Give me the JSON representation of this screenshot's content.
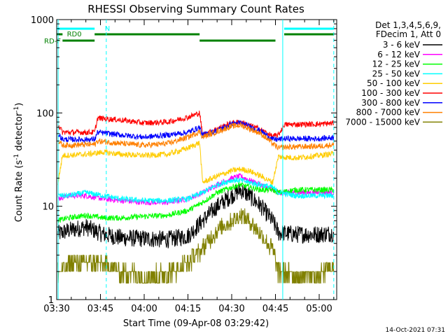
{
  "chart_data": {
    "type": "line",
    "title": "RHESSI Observing Summary Count Rates",
    "xlabel": "Start Time (09-Apr-08 03:29:42)",
    "ylabel_main": "Count Rate (s",
    "ylabel_sup1": "-1",
    "ylabel_mid": " detector",
    "ylabel_sup2": "-1",
    "ylabel_end": ")",
    "y_scale": "log",
    "ylim": [
      1,
      1000
    ],
    "y_ticks": [
      {
        "value": 1,
        "label": "1"
      },
      {
        "value": 10,
        "label": "10"
      },
      {
        "value": 100,
        "label": "100"
      },
      {
        "value": 1000,
        "label": "1000"
      }
    ],
    "xlim_minutes": [
      210,
      306
    ],
    "x_ticks": [
      {
        "minute": 210,
        "label": "03:30"
      },
      {
        "minute": 225,
        "label": "03:45"
      },
      {
        "minute": 240,
        "label": "04:00"
      },
      {
        "minute": 255,
        "label": "04:15"
      },
      {
        "minute": 270,
        "label": "04:30"
      },
      {
        "minute": 285,
        "label": "04:45"
      },
      {
        "minute": 300,
        "label": "05:00"
      }
    ],
    "legend_header": [
      "Det 1,3,4,5,6,9,",
      "FDecim 1, Att 0"
    ],
    "legend_placement": "right",
    "series": [
      {
        "name": "3 - 6 keV",
        "color": "#000000",
        "points": [
          [
            210,
            5
          ],
          [
            214,
            5.5
          ],
          [
            220,
            6
          ],
          [
            226,
            5
          ],
          [
            232,
            4.6
          ],
          [
            240,
            4.5
          ],
          [
            248,
            4.4
          ],
          [
            255,
            4.8
          ],
          [
            260,
            7
          ],
          [
            265,
            10
          ],
          [
            270,
            13
          ],
          [
            273,
            15
          ],
          [
            276,
            13
          ],
          [
            280,
            10
          ],
          [
            284,
            7
          ],
          [
            286,
            5.2
          ],
          [
            292,
            5
          ],
          [
            300,
            5
          ],
          [
            306,
            5.2
          ]
        ]
      },
      {
        "name": "6 - 12 keV",
        "color": "#ff00ff",
        "points": [
          [
            210,
            12
          ],
          [
            214,
            13
          ],
          [
            220,
            13
          ],
          [
            226,
            12
          ],
          [
            232,
            11.5
          ],
          [
            240,
            11
          ],
          [
            248,
            11
          ],
          [
            255,
            12
          ],
          [
            260,
            14
          ],
          [
            265,
            17
          ],
          [
            270,
            20
          ],
          [
            273,
            21
          ],
          [
            276,
            19
          ],
          [
            280,
            17
          ],
          [
            284,
            15
          ],
          [
            286,
            14
          ],
          [
            292,
            14
          ],
          [
            300,
            14
          ],
          [
            306,
            14
          ]
        ]
      },
      {
        "name": "12 - 25 keV",
        "color": "#00ff00",
        "points": [
          [
            210,
            7
          ],
          [
            214,
            7.5
          ],
          [
            220,
            8
          ],
          [
            226,
            7.5
          ],
          [
            232,
            7.5
          ],
          [
            240,
            7.8
          ],
          [
            248,
            8
          ],
          [
            255,
            9
          ],
          [
            260,
            11
          ],
          [
            265,
            14
          ],
          [
            270,
            16
          ],
          [
            273,
            17
          ],
          [
            276,
            16
          ],
          [
            280,
            15
          ],
          [
            284,
            15
          ],
          [
            286,
            14
          ],
          [
            292,
            15
          ],
          [
            300,
            15
          ],
          [
            306,
            15
          ]
        ]
      },
      {
        "name": "25 - 50 keV",
        "color": "#00ffff",
        "points": [
          [
            210,
            13
          ],
          [
            214,
            13
          ],
          [
            220,
            14
          ],
          [
            226,
            13
          ],
          [
            232,
            12
          ],
          [
            240,
            11.5
          ],
          [
            248,
            11.5
          ],
          [
            255,
            12
          ],
          [
            260,
            14
          ],
          [
            265,
            17
          ],
          [
            270,
            19
          ],
          [
            273,
            19
          ],
          [
            276,
            18
          ],
          [
            280,
            17
          ],
          [
            284,
            16
          ],
          [
            286,
            14
          ],
          [
            292,
            13
          ],
          [
            300,
            13
          ],
          [
            306,
            13
          ]
        ]
      },
      {
        "name": "50 - 100 keV",
        "color": "#ffcc00",
        "points": [
          [
            210,
            15
          ],
          [
            212,
            35
          ],
          [
            220,
            36
          ],
          [
            226,
            38
          ],
          [
            232,
            36
          ],
          [
            240,
            35
          ],
          [
            248,
            36
          ],
          [
            255,
            42
          ],
          [
            259,
            48
          ],
          [
            260,
            18
          ],
          [
            265,
            21
          ],
          [
            270,
            24
          ],
          [
            273,
            25
          ],
          [
            276,
            24
          ],
          [
            280,
            21
          ],
          [
            284,
            18
          ],
          [
            286,
            34
          ],
          [
            292,
            33
          ],
          [
            300,
            35
          ],
          [
            306,
            37
          ]
        ]
      },
      {
        "name": "100 - 300 keV",
        "color": "#ff0000",
        "points": [
          [
            210,
            80
          ],
          [
            212,
            62
          ],
          [
            223,
            62
          ],
          [
            224,
            88
          ],
          [
            232,
            84
          ],
          [
            240,
            78
          ],
          [
            248,
            80
          ],
          [
            255,
            90
          ],
          [
            259,
            100
          ],
          [
            260,
            58
          ],
          [
            265,
            68
          ],
          [
            270,
            78
          ],
          [
            273,
            80
          ],
          [
            276,
            74
          ],
          [
            280,
            66
          ],
          [
            284,
            56
          ],
          [
            286,
            58
          ],
          [
            288,
            75
          ],
          [
            300,
            76
          ],
          [
            306,
            78
          ]
        ]
      },
      {
        "name": "300 - 800 keV",
        "color": "#0000ff",
        "points": [
          [
            210,
            62
          ],
          [
            212,
            52
          ],
          [
            223,
            52
          ],
          [
            224,
            62
          ],
          [
            232,
            58
          ],
          [
            240,
            55
          ],
          [
            248,
            58
          ],
          [
            255,
            62
          ],
          [
            259,
            70
          ],
          [
            260,
            58
          ],
          [
            265,
            65
          ],
          [
            270,
            76
          ],
          [
            273,
            78
          ],
          [
            276,
            72
          ],
          [
            280,
            64
          ],
          [
            284,
            52
          ],
          [
            286,
            52
          ],
          [
            288,
            53
          ],
          [
            300,
            53
          ],
          [
            306,
            55
          ]
        ]
      },
      {
        "name": "800 - 7000 keV",
        "color": "#ff8000",
        "points": [
          [
            210,
            52
          ],
          [
            212,
            45
          ],
          [
            223,
            46
          ],
          [
            224,
            50
          ],
          [
            232,
            47
          ],
          [
            240,
            45
          ],
          [
            248,
            47
          ],
          [
            255,
            55
          ],
          [
            259,
            63
          ],
          [
            260,
            55
          ],
          [
            265,
            63
          ],
          [
            270,
            72
          ],
          [
            273,
            74
          ],
          [
            276,
            68
          ],
          [
            280,
            60
          ],
          [
            284,
            47
          ],
          [
            286,
            42
          ],
          [
            288,
            43
          ],
          [
            300,
            44
          ],
          [
            306,
            46
          ]
        ]
      },
      {
        "name": "7000 - 15000 keV",
        "color": "#808000",
        "points": [
          [
            210,
            2
          ],
          [
            216,
            2.5
          ],
          [
            222,
            2.5
          ],
          [
            226,
            2.4
          ],
          [
            232,
            2
          ],
          [
            240,
            1.8
          ],
          [
            248,
            1.9
          ],
          [
            255,
            2.5
          ],
          [
            260,
            3.5
          ],
          [
            265,
            5.5
          ],
          [
            270,
            7
          ],
          [
            273,
            8
          ],
          [
            276,
            7
          ],
          [
            280,
            5
          ],
          [
            284,
            3.5
          ],
          [
            286,
            2
          ],
          [
            292,
            1.8
          ],
          [
            300,
            1.8
          ],
          [
            306,
            2.4
          ]
        ]
      }
    ],
    "annotations": [
      {
        "label": "N",
        "color": "#00ffff",
        "segments": [
          [
            210,
            223
          ],
          [
            288,
            305
          ]
        ],
        "level": 1
      },
      {
        "label": "RD0",
        "color": "#008000",
        "segments": [
          [
            210,
            212
          ],
          [
            223,
            259
          ],
          [
            288,
            305
          ]
        ],
        "level": 2
      },
      {
        "label": "RD-F",
        "color": "#008000",
        "segments": [
          [
            212,
            223
          ],
          [
            259,
            285
          ]
        ],
        "level": 3
      }
    ],
    "vertical_markers": [
      {
        "minute": 210.5,
        "color": "#00ffff",
        "style": "solid"
      },
      {
        "minute": 227,
        "color": "#00ffff",
        "style": "dashed"
      },
      {
        "minute": 287.5,
        "color": "#00ffff",
        "style": "solid"
      },
      {
        "minute": 305,
        "color": "#00ffff",
        "style": "dashed"
      }
    ],
    "footer_date": "14-Oct-2021 07:31"
  }
}
